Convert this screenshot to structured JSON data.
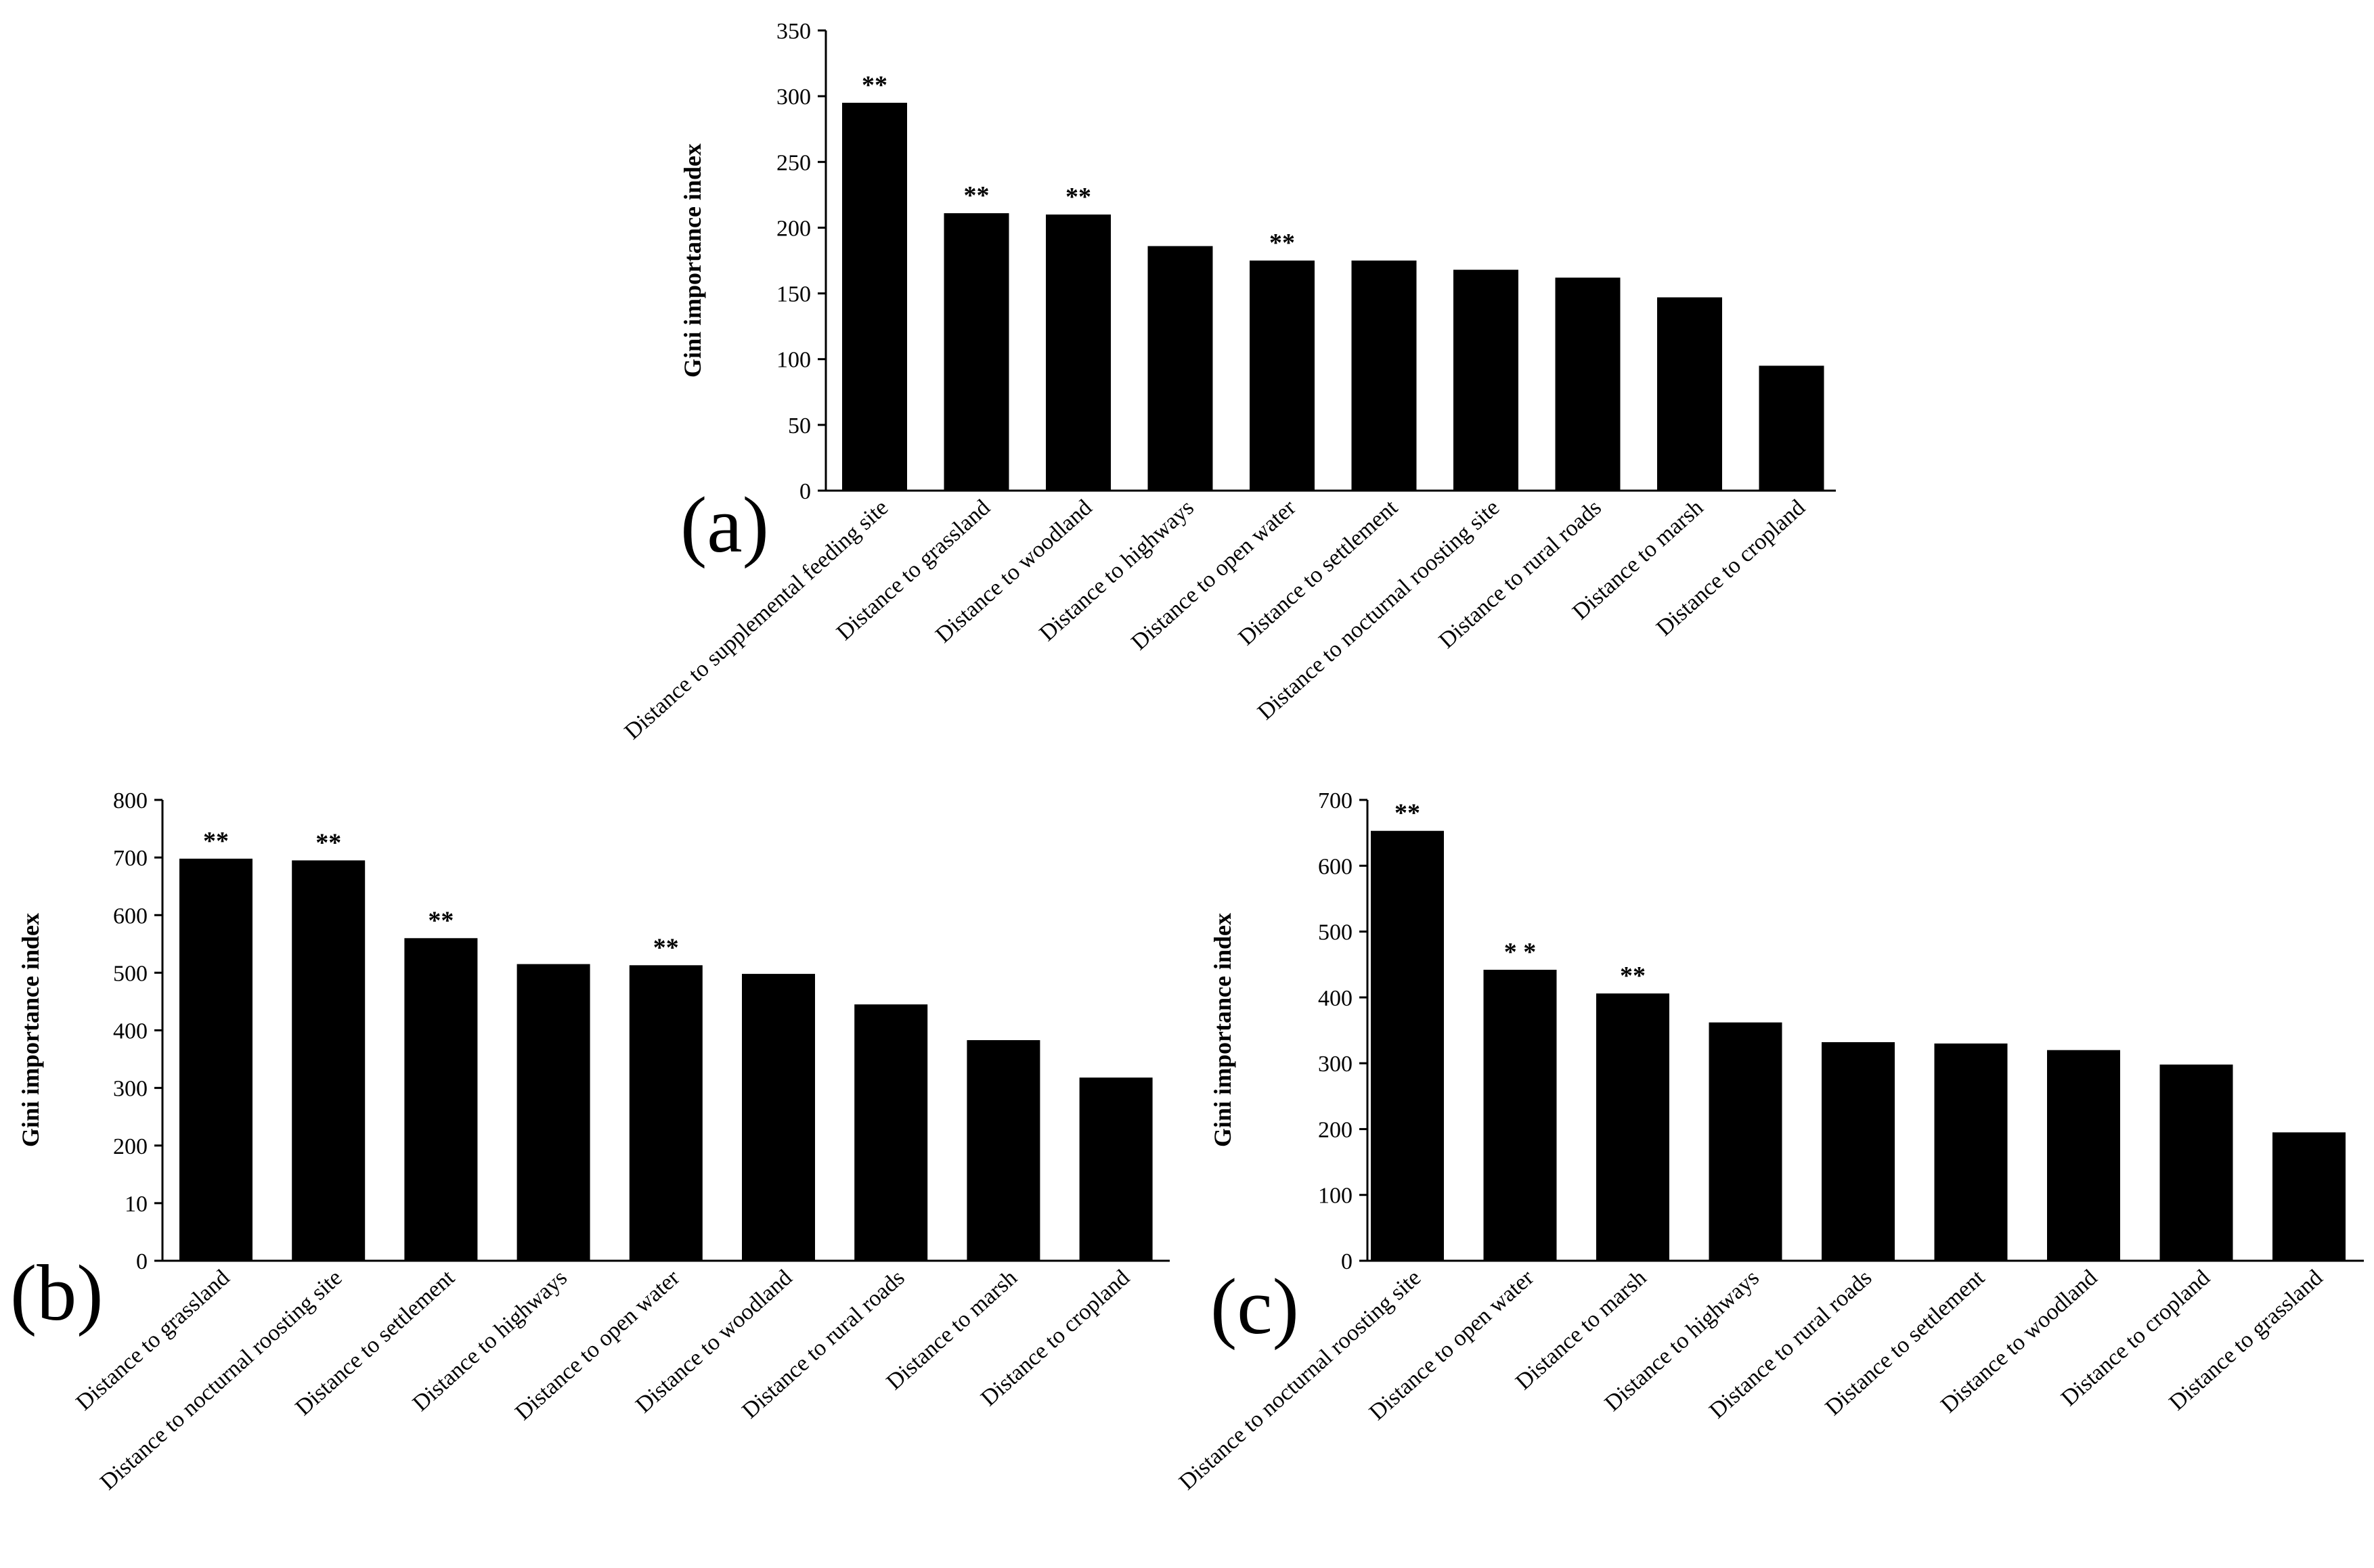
{
  "chart_data": [
    {
      "type": "bar",
      "panel_label": "(a)",
      "ylabel": "Gini importance index",
      "ylim": [
        0,
        350
      ],
      "yticks": [
        "0",
        "50",
        "100",
        "150",
        "200",
        "250",
        "300",
        "350"
      ],
      "categories": [
        "Distance to supplemental feeding site",
        "Distance to grassland",
        "Distance to woodland",
        "Distance to highways",
        "Distance to open water",
        "Distance to settlement",
        "Distance to nocturnal roosting site",
        "Distance to rural roads",
        "Distance to marsh",
        "Distance to cropland"
      ],
      "values": [
        295,
        211,
        210,
        186,
        175,
        175,
        168,
        162,
        147,
        95
      ],
      "annotations": [
        "**",
        "**",
        "**",
        "",
        "**",
        "",
        "",
        "",
        "",
        ""
      ]
    },
    {
      "type": "bar",
      "panel_label": "(b)",
      "ylabel": "Gini importance index",
      "ylim": [
        0,
        800
      ],
      "yticks": [
        "0",
        "10",
        "200",
        "300",
        "400",
        "500",
        "600",
        "700",
        "800"
      ],
      "categories": [
        "Distance to grassland",
        "Distance to nocturnal roosting site",
        "Distance to settlement",
        "Distance to highways",
        "Distance to open water",
        "Distance to woodland",
        "Distance to rural roads",
        "Distance to marsh",
        "Distance to cropland"
      ],
      "values": [
        698,
        695,
        560,
        515,
        513,
        498,
        445,
        383,
        318
      ],
      "annotations": [
        "**",
        "**",
        "**",
        "",
        "**",
        "",
        "",
        "",
        ""
      ]
    },
    {
      "type": "bar",
      "panel_label": "(c)",
      "ylabel": "Gini importance index",
      "ylim": [
        0,
        700
      ],
      "yticks": [
        "0",
        "100",
        "200",
        "300",
        "400",
        "500",
        "600",
        "700"
      ],
      "categories": [
        "Distance to nocturnal roosting site",
        "Distance to open water",
        "Distance to marsh",
        "Distance to highways",
        "Distance to rural roads",
        "Distance to settlement",
        "Distance to woodland",
        "Distance to cropland",
        "Distance to grassland"
      ],
      "values": [
        653,
        442,
        406,
        362,
        332,
        330,
        320,
        298,
        195
      ],
      "annotations": [
        "**",
        "* *",
        "**",
        "",
        "",
        "",
        "",
        "",
        ""
      ]
    }
  ]
}
